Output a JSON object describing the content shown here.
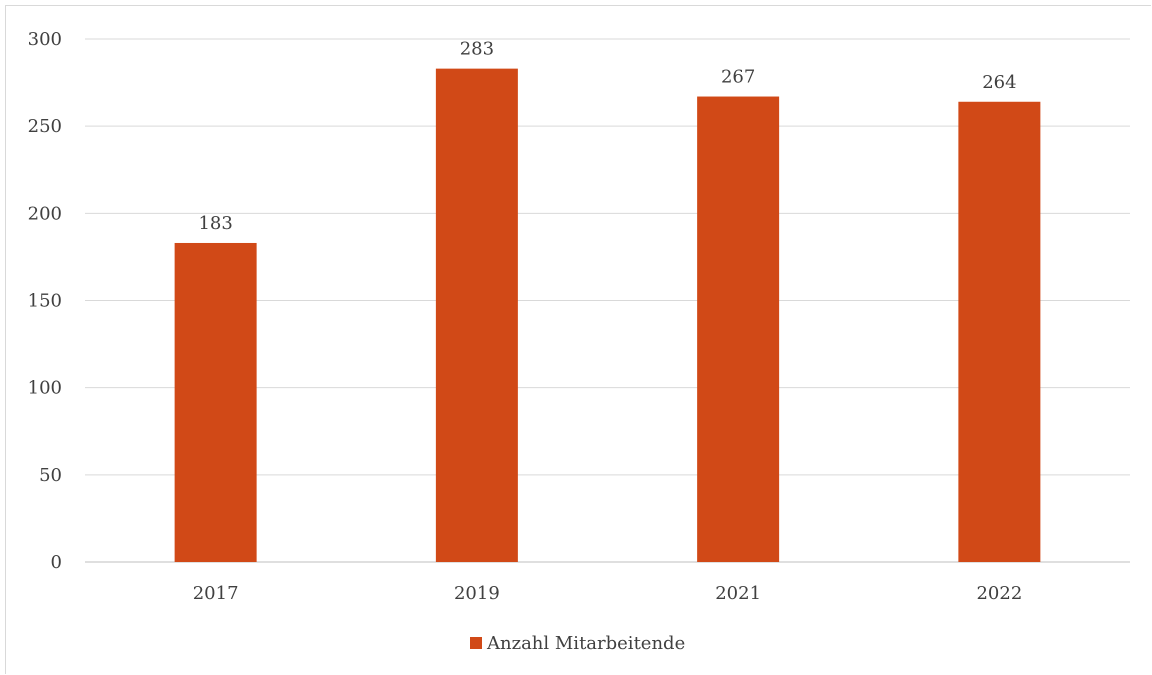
{
  "chart_data": {
    "type": "bar",
    "title": "",
    "xlabel": "",
    "ylabel": "",
    "categories": [
      "2017",
      "2019",
      "2021",
      "2022"
    ],
    "series": [
      {
        "name": "Anzahl Mitarbeitende",
        "values": [
          183,
          283,
          267,
          264
        ],
        "color": "#d14917"
      }
    ],
    "ylim": [
      0,
      300
    ],
    "yticks": [
      0,
      50,
      100,
      150,
      200,
      250,
      300
    ],
    "grid": true,
    "data_labels": true,
    "legend_position": "bottom"
  }
}
